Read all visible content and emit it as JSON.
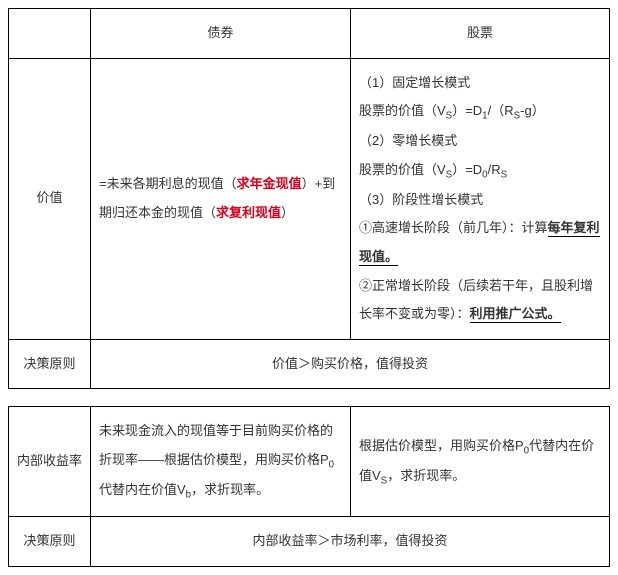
{
  "header": {
    "bond": "债券",
    "stock": "股票"
  },
  "rows": {
    "value_label": "价值",
    "decision_label": "决策原则",
    "irr_label": "内部收益率"
  },
  "bond_value": {
    "part1": "=未来各期利息的现值（",
    "red1": "求年金现值",
    "mid": "）+到期归还本金的现值（",
    "red2": "求复利现值",
    "end": "）"
  },
  "stock_value": {
    "l1": "（1）固定增长模式",
    "l2a": "股票的价值（V",
    "l2b": "）=D",
    "l2c": "/（R",
    "l2d": "-g）",
    "l3": "（2）零增长模式",
    "l4a": "股票的价值（V",
    "l4b": "）=D",
    "l4c": "/R",
    "l5": "（3）阶段性增长模式",
    "l6a": "①高速增长阶段（前几年）：计算",
    "l6b": "每年复利现值。",
    "l7a": "②正常增长阶段（后续若干年，且股利增长率不变或为零）：",
    "l7b": "利用推广公式。",
    "sub_s": "S",
    "sub_1": "1",
    "sub_0": "0"
  },
  "decision1": "价值＞购买价格，值得投资",
  "bond_irr": {
    "t1": "未来现金流入的现值等于目前购买价格的折现率——根据估价模型，用购买价格P",
    "t2": "代替内在价值V",
    "t3": "，求折现率。",
    "sub_0": "0",
    "sub_b": "b"
  },
  "stock_irr": {
    "t1": "根据估价模型，用购买价格P",
    "t2": "代替内在价值V",
    "t3": "，求折现率。",
    "sub_0": "0",
    "sub_s": "S"
  },
  "decision2": "内部收益率＞市场利率，值得投资",
  "colors": {
    "text": "#333333",
    "highlight": "#d9001b",
    "border": "#000000",
    "background": "#ffffff"
  },
  "font_size_pt": 10
}
